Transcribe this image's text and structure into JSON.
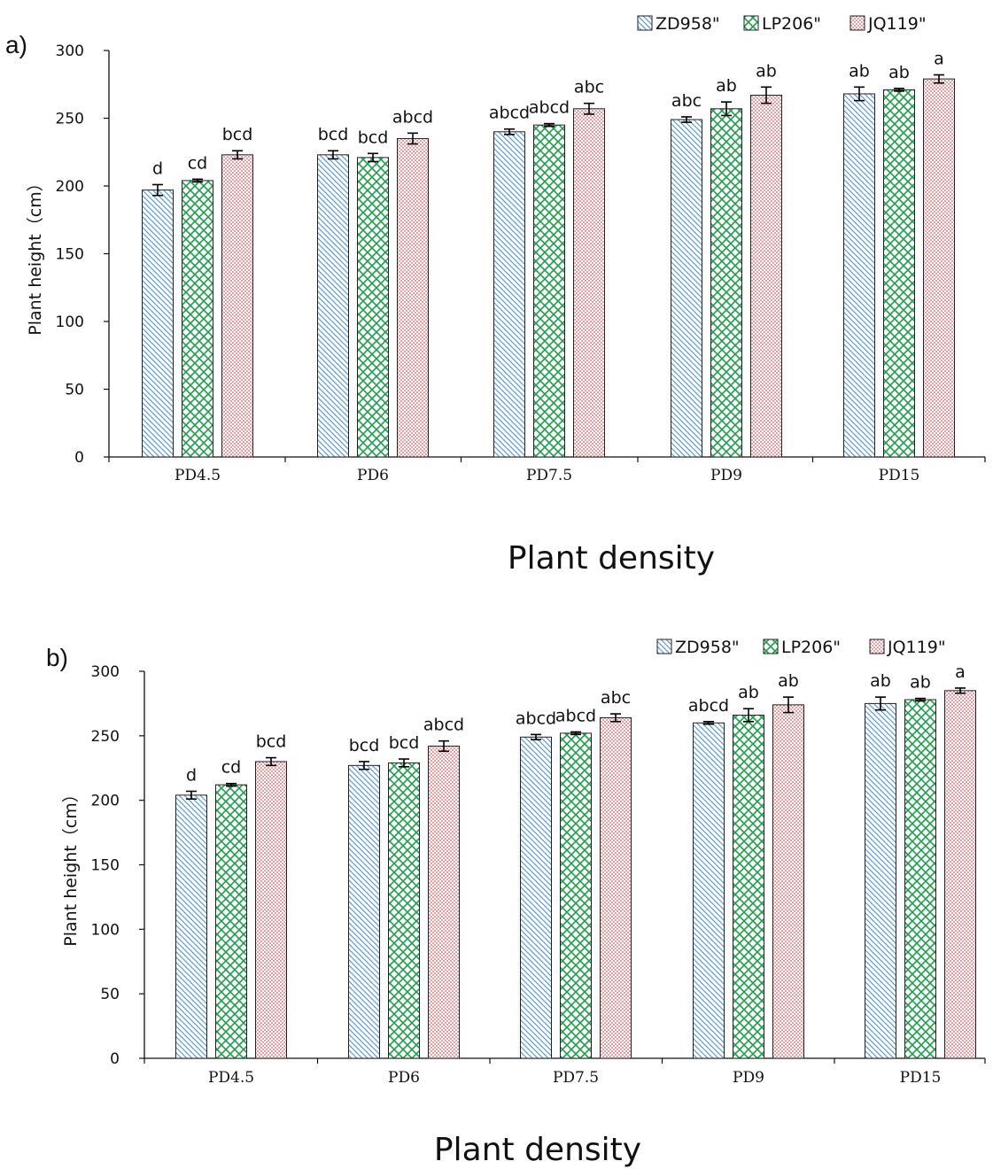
{
  "colors": {
    "ZD958\"": "#5b9bd5",
    "LP206\"": "#1e9e4a",
    "JQ119\"": "#e0585e"
  },
  "chart_data": [
    {
      "panel_label": "a)",
      "type": "bar",
      "categories": [
        "PD4.5",
        "PD6",
        "PD7.5",
        "PD9",
        "PD15"
      ],
      "xlabel": "Plant density",
      "ylabel": "Plant height（cm）",
      "ylim": [
        0,
        300
      ],
      "yticks": [
        0,
        50,
        100,
        150,
        200,
        250,
        300
      ],
      "legend_position": "top-right",
      "grid": false,
      "series": [
        {
          "name": "ZD958\"",
          "values": [
            197,
            223,
            240,
            249,
            268
          ],
          "errors": [
            4,
            3,
            2,
            2,
            5
          ],
          "letters": [
            "d",
            "bcd",
            "abcd",
            "abc",
            "ab"
          ]
        },
        {
          "name": "LP206\"",
          "values": [
            204,
            221,
            245,
            257,
            271
          ],
          "errors": [
            1,
            3,
            1,
            5,
            1
          ],
          "letters": [
            "cd",
            "bcd",
            "abcd",
            "ab",
            "ab"
          ]
        },
        {
          "name": "JQ119\"",
          "values": [
            223,
            235,
            257,
            267,
            279
          ],
          "errors": [
            3,
            4,
            4,
            6,
            3
          ],
          "letters": [
            "bcd",
            "abcd",
            "abc",
            "ab",
            "a"
          ]
        }
      ]
    },
    {
      "panel_label": "b)",
      "type": "bar",
      "categories": [
        "PD4.5",
        "PD6",
        "PD7.5",
        "PD9",
        "PD15"
      ],
      "xlabel": "Plant density",
      "ylabel": "Plant height（cm）",
      "ylim": [
        0,
        300
      ],
      "yticks": [
        0,
        50,
        100,
        150,
        200,
        250,
        300
      ],
      "legend_position": "top-right",
      "grid": false,
      "series": [
        {
          "name": "ZD958\"",
          "values": [
            204,
            227,
            249,
            260,
            275
          ],
          "errors": [
            3,
            3,
            2,
            1,
            5
          ],
          "letters": [
            "d",
            "bcd",
            "abcd",
            "abcd",
            "ab"
          ]
        },
        {
          "name": "LP206\"",
          "values": [
            212,
            229,
            252,
            266,
            278
          ],
          "errors": [
            1,
            3,
            1,
            5,
            1
          ],
          "letters": [
            "cd",
            "bcd",
            "abcd",
            "ab",
            "ab"
          ]
        },
        {
          "name": "JQ119\"",
          "values": [
            230,
            242,
            264,
            274,
            285
          ],
          "errors": [
            3,
            4,
            3,
            6,
            2
          ],
          "letters": [
            "bcd",
            "abcd",
            "abc",
            "ab",
            "a"
          ]
        }
      ]
    }
  ]
}
